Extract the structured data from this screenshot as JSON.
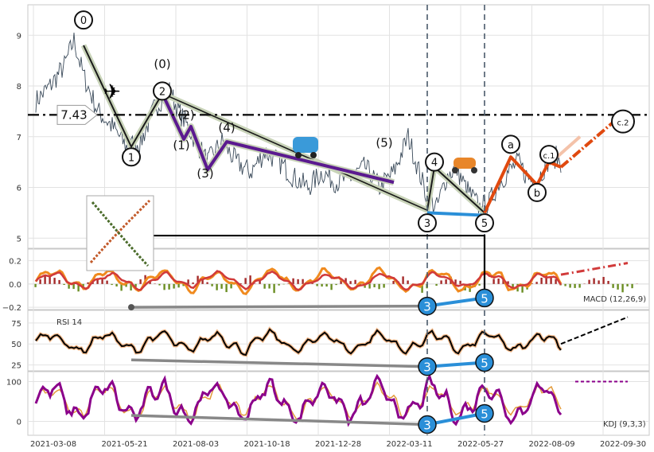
{
  "chart_data": {
    "type": "line",
    "x_tick_labels": [
      "2021-03-08",
      "2021-05-21",
      "2021-08-03",
      "2021-10-18",
      "2021-12-28",
      "2022-03-11",
      "2022-05-27",
      "2022-08-09",
      "2022-09-30"
    ],
    "price_panel": {
      "y_ticks": [
        "5",
        "6",
        "7",
        "8",
        "9"
      ],
      "ylim": [
        4.8,
        9.6
      ],
      "horizontal_level": {
        "value": 7.43,
        "label": "7.43"
      },
      "price_series_approx": [
        [
          0,
          7.7
        ],
        [
          3,
          8.0
        ],
        [
          6,
          8.4
        ],
        [
          8,
          8.9
        ],
        [
          10,
          8.2
        ],
        [
          13,
          7.5
        ],
        [
          16,
          7.2
        ],
        [
          19,
          6.8
        ],
        [
          22,
          6.9
        ],
        [
          25,
          7.6
        ],
        [
          28,
          7.9
        ],
        [
          30,
          7.5
        ],
        [
          33,
          7.0
        ],
        [
          36,
          6.5
        ],
        [
          39,
          6.9
        ],
        [
          42,
          6.5
        ],
        [
          45,
          6.3
        ],
        [
          48,
          6.7
        ],
        [
          51,
          6.5
        ],
        [
          54,
          6.2
        ],
        [
          57,
          6.0
        ],
        [
          60,
          6.3
        ],
        [
          63,
          6.1
        ],
        [
          66,
          6.2
        ],
        [
          69,
          6.4
        ],
        [
          72,
          6.0
        ],
        [
          75,
          6.3
        ],
        [
          78,
          7.0
        ],
        [
          80,
          6.4
        ],
        [
          82,
          5.8
        ],
        [
          84,
          5.6
        ],
        [
          86,
          6.2
        ],
        [
          88,
          6.4
        ],
        [
          90,
          6.0
        ],
        [
          93,
          5.6
        ],
        [
          95,
          5.7
        ],
        [
          97,
          6.1
        ],
        [
          99,
          6.3
        ],
        [
          101,
          6.5
        ],
        [
          103,
          6.2
        ],
        [
          105,
          6.1
        ],
        [
          107,
          6.5
        ],
        [
          109,
          6.6
        ],
        [
          110,
          6.5
        ]
      ],
      "wave_labels_circled": [
        {
          "text": "0",
          "x": 10,
          "y": 9.3
        },
        {
          "text": "1",
          "x": 20,
          "y": 6.6
        },
        {
          "text": "2",
          "x": 26.5,
          "y": 7.9
        },
        {
          "text": "3",
          "x": 82,
          "y": 5.3
        },
        {
          "text": "4",
          "x": 83.5,
          "y": 6.5
        },
        {
          "text": "5",
          "x": 94,
          "y": 5.3
        },
        {
          "text": "a",
          "x": 99.5,
          "y": 6.85
        },
        {
          "text": "b",
          "x": 105,
          "y": 5.9
        },
        {
          "text": "c.1",
          "x": 107.5,
          "y": 6.65
        },
        {
          "text": "c.2",
          "x": 123,
          "y": 7.3
        }
      ],
      "wave_labels_plain": [
        {
          "text": "(0)",
          "x": 26.5,
          "y": 8.35
        },
        {
          "text": "(1)",
          "x": 30.5,
          "y": 6.75
        },
        {
          "text": "(2)",
          "x": 31.5,
          "y": 7.35
        },
        {
          "text": "(3)",
          "x": 35.5,
          "y": 6.2
        },
        {
          "text": "(4)",
          "x": 40,
          "y": 7.1
        },
        {
          "text": "(5)",
          "x": 73,
          "y": 6.8
        }
      ]
    },
    "macd_panel": {
      "label": "MACD (12,26,9)",
      "y_ticks": [
        "0.2",
        "0.0",
        "−0.2"
      ],
      "ylim": [
        -0.22,
        0.3
      ]
    },
    "rsi_panel": {
      "label": "RSI 14",
      "y_ticks": [
        "25",
        "50",
        "75"
      ],
      "ylim": [
        18,
        90
      ]
    },
    "kdj_panel": {
      "label": "KDJ (9,3,3)",
      "y_ticks": [
        "0",
        "100"
      ],
      "ylim": [
        -35,
        125
      ]
    },
    "divergence_labels": [
      {
        "panel": "macd",
        "text": "3",
        "x": 82
      },
      {
        "panel": "macd",
        "text": "5",
        "x": 94
      },
      {
        "panel": "rsi",
        "text": "3",
        "x": 82
      },
      {
        "panel": "rsi",
        "text": "5",
        "x": 94
      },
      {
        "panel": "kdj",
        "text": "3",
        "x": 82
      },
      {
        "panel": "kdj",
        "text": "5",
        "x": 94
      }
    ],
    "colors": {
      "price": "#3a4a5a",
      "wave_main": "#1a1a1a",
      "wave_outline": "#c8d3b8",
      "subwave": "#5b1a8f",
      "correction": "#e0490f",
      "blue": "#2a8fd8",
      "dash_line": "#111111",
      "vline": "#4a5a6a",
      "macd_line": "#f08a1e",
      "signal_line": "#d13a3a",
      "kdj_line": "#8b008b"
    }
  }
}
